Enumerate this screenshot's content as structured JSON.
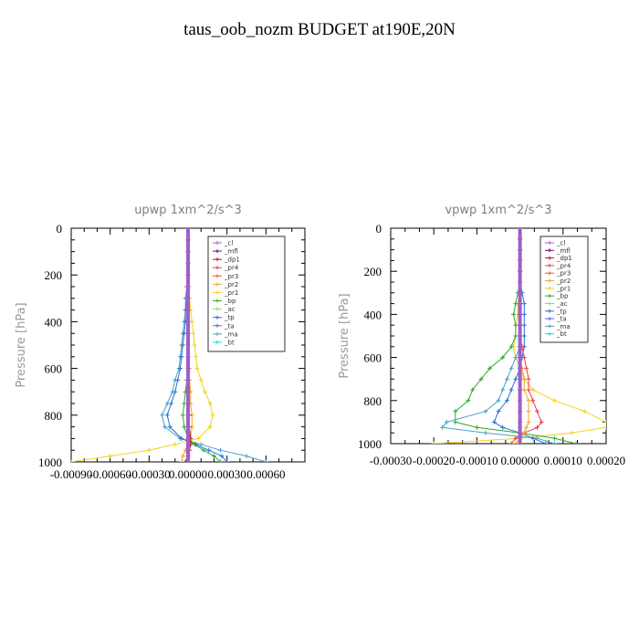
{
  "title": "taus_oob_nozm  BUDGET at190E,20N",
  "legend_labels": [
    "_cl",
    "_mfl",
    "_dp1",
    "_pr4",
    "_pr3",
    "_pr2",
    "_pr1",
    "_bp",
    "_ac",
    "_tp",
    "_ta",
    "_ma",
    "_bt"
  ],
  "colors": {
    "_cl": "#a05fc8",
    "_mfl": "#7a0a6e",
    "_dp1": "#b3122d",
    "_pr4": "#e8404a",
    "_pr3": "#f06030",
    "_pr2": "#f5a623",
    "_pr1": "#f2d21a",
    "_bp": "#2eaa2e",
    "_ac": "#8ee05a",
    "_tp": "#2a6fd6",
    "_ta": "#5a66e8",
    "_ma": "#4aa3c8",
    "_bt": "#1ad6e8"
  },
  "chart_data": [
    {
      "type": "line",
      "subtitle": "upwp   1xm^2/s^3",
      "ylabel": "Pressure [hPa]",
      "xlim": [
        -0.0009,
        0.0009
      ],
      "ylim": [
        1000,
        0
      ],
      "x_ticks": [
        "-0.00090",
        "-0.00060",
        "-0.00030",
        "0.00000",
        "0.00030",
        "0.00060"
      ],
      "y_ticks": [
        "0",
        "200",
        "400",
        "600",
        "800",
        "1000"
      ],
      "x_tick_values": [
        -0.0009,
        -0.0006,
        -0.0003,
        0.0,
        0.0003,
        0.0006
      ],
      "y_tick_values": [
        0,
        200,
        400,
        600,
        800,
        1000
      ],
      "levels": [
        0,
        50,
        100,
        150,
        200,
        250,
        300,
        350,
        400,
        450,
        500,
        550,
        600,
        650,
        700,
        750,
        800,
        850,
        900,
        925,
        950,
        975,
        1000
      ],
      "series": [
        {
          "name": "_pr1",
          "values": [
            0,
            0,
            0,
            0,
            0,
            1e-05,
            1e-05,
            2e-05,
            3e-05,
            4e-05,
            5e-05,
            6e-05,
            7e-05,
            0.0001,
            0.00013,
            0.00017,
            0.00019,
            0.00017,
            8e-05,
            -0.0001,
            -0.0003,
            -0.0006,
            -0.0009
          ]
        },
        {
          "name": "_ma",
          "values": [
            0,
            0,
            0,
            0,
            0,
            -1e-05,
            -2e-05,
            -2e-05,
            -3e-05,
            -4e-05,
            -5e-05,
            -6e-05,
            -7e-05,
            -0.0001,
            -0.00012,
            -0.00016,
            -0.0002,
            -0.00018,
            -6e-05,
            0.0001,
            0.00025,
            0.00045,
            0.0006
          ]
        },
        {
          "name": "_tp",
          "values": [
            0,
            0,
            0,
            0,
            0,
            -1e-05,
            -1e-05,
            -2e-05,
            -2e-05,
            -3e-05,
            -4e-05,
            -5e-05,
            -6e-05,
            -8e-05,
            -0.0001,
            -0.00013,
            -0.00016,
            -0.00014,
            -5e-05,
            6e-05,
            0.00016,
            0.00026,
            0.0003
          ]
        },
        {
          "name": "_bp",
          "values": [
            0,
            0,
            0,
            0,
            0,
            0,
            0,
            0,
            0,
            0,
            0,
            0,
            0,
            -1e-05,
            -2e-05,
            -3e-05,
            -4e-05,
            -3e-05,
            0,
            5e-05,
            0.00012,
            0.0002,
            0.00025
          ]
        },
        {
          "name": "_pr2",
          "values": [
            0,
            0,
            0,
            0,
            0,
            0,
            0,
            0,
            0,
            0,
            0,
            0,
            1e-05,
            1e-05,
            2e-05,
            2e-05,
            3e-05,
            3e-05,
            2e-05,
            0,
            -2e-05,
            -4e-05,
            -5e-05
          ]
        },
        {
          "name": "_dp1",
          "values": [
            0,
            0,
            0,
            0,
            0,
            0,
            0,
            0,
            0,
            0,
            0,
            0,
            0,
            0,
            0,
            0,
            1e-05,
            1e-05,
            2e-05,
            2e-05,
            1e-05,
            0,
            -2e-05
          ]
        },
        {
          "name": "_cl",
          "values": [
            0,
            0,
            0,
            0,
            0,
            0,
            0,
            0,
            0,
            0,
            0,
            0,
            0,
            0,
            0,
            0,
            0,
            0,
            0,
            0,
            0,
            0,
            0
          ]
        }
      ]
    },
    {
      "type": "line",
      "subtitle": "vpwp   1xm^2/s^3",
      "ylabel": "Pressure [hPa]",
      "xlim": [
        -0.0003,
        0.0002
      ],
      "ylim": [
        1000,
        0
      ],
      "x_ticks": [
        "-0.00030",
        "-0.00020",
        "-0.00010",
        "0.00000",
        "0.00010",
        "0.00020"
      ],
      "y_ticks": [
        "0",
        "200",
        "400",
        "600",
        "800",
        "1000"
      ],
      "x_tick_values": [
        -0.0003,
        -0.0002,
        -0.0001,
        0.0,
        0.0001,
        0.0002
      ],
      "y_tick_values": [
        0,
        200,
        400,
        600,
        800,
        1000
      ],
      "levels": [
        0,
        50,
        100,
        150,
        200,
        250,
        300,
        350,
        400,
        450,
        500,
        550,
        600,
        650,
        700,
        750,
        800,
        850,
        900,
        925,
        950,
        975,
        1000
      ],
      "series": [
        {
          "name": "_pr1",
          "values": [
            0,
            0,
            0,
            0,
            0,
            0,
            0,
            -5e-06,
            -5e-06,
            -1e-05,
            -1e-05,
            -1.5e-05,
            -1e-05,
            0,
            1e-05,
            3e-05,
            8e-05,
            0.00015,
            0.0002,
            0.0002,
            0.00012,
            0,
            -0.0002
          ]
        },
        {
          "name": "_bp",
          "values": [
            0,
            0,
            0,
            0,
            0,
            0,
            -5e-06,
            -1e-05,
            -1.5e-05,
            -1e-05,
            -1e-05,
            -2e-05,
            -4e-05,
            -7e-05,
            -9e-05,
            -0.00011,
            -0.00012,
            -0.00015,
            -0.00015,
            -0.0001,
            0,
            8e-05,
            0.00013
          ]
        },
        {
          "name": "_ma",
          "values": [
            0,
            0,
            0,
            0,
            0,
            0,
            0,
            0,
            0,
            0,
            0,
            0,
            -1e-05,
            -2e-05,
            -3e-05,
            -4e-05,
            -5e-05,
            -8e-05,
            -0.00017,
            -0.00018,
            -8e-05,
            4e-05,
            8e-05
          ]
        },
        {
          "name": "_tp",
          "values": [
            0,
            0,
            0,
            0,
            0,
            0,
            5e-06,
            1e-05,
            1e-05,
            1e-05,
            1e-05,
            1e-05,
            5e-06,
            0,
            -1e-05,
            -2e-05,
            -3e-05,
            -5e-05,
            -6e-05,
            -4e-05,
            0,
            3e-05,
            6e-05
          ]
        },
        {
          "name": "_pr4",
          "values": [
            0,
            0,
            0,
            0,
            0,
            0,
            0,
            0,
            0,
            0,
            0,
            5e-06,
            1e-05,
            1.5e-05,
            2e-05,
            2e-05,
            3e-05,
            4e-05,
            5e-05,
            4e-05,
            1e-05,
            -1e-05,
            -2e-05
          ]
        },
        {
          "name": "_pr2",
          "values": [
            0,
            0,
            0,
            0,
            0,
            0,
            0,
            0,
            0,
            0,
            0,
            0,
            0,
            5e-06,
            1e-05,
            1e-05,
            2e-05,
            2e-05,
            2e-05,
            1.5e-05,
            1e-05,
            0,
            -1e-05
          ]
        },
        {
          "name": "_cl",
          "values": [
            0,
            0,
            0,
            0,
            0,
            0,
            0,
            0,
            0,
            0,
            0,
            0,
            0,
            0,
            0,
            0,
            0,
            0,
            0,
            0,
            0,
            0,
            0
          ]
        }
      ]
    }
  ]
}
